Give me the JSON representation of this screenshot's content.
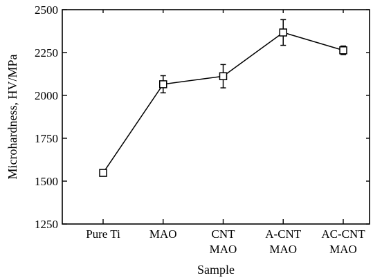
{
  "chart_data": {
    "type": "line",
    "title": "",
    "xlabel": "Sample",
    "ylabel": "Microhardness, HV/MPa",
    "categories": [
      "Pure Ti",
      "MAO",
      "CNT MAO",
      "A-CNT MAO",
      "AC-CNT MAO"
    ],
    "category_labels": [
      [
        "Pure Ti"
      ],
      [
        "MAO"
      ],
      [
        "CNT",
        "MAO"
      ],
      [
        "A-CNT",
        "MAO"
      ],
      [
        "AC-CNT",
        "MAO"
      ]
    ],
    "series": [
      {
        "values": [
          1548,
          2065,
          2112,
          2367,
          2263
        ],
        "error": [
          18,
          50,
          68,
          75,
          25
        ],
        "connected": [
          true,
          true,
          true,
          true,
          false
        ],
        "marker": "open-square",
        "color": "#000000"
      }
    ],
    "ylim": [
      1250,
      2500
    ],
    "yticks": [
      1250,
      1500,
      1750,
      2000,
      2250,
      2500
    ],
    "yticks_labels": [
      "1250",
      "1500",
      "1750",
      "2000",
      "2250",
      "2500"
    ],
    "grid": false,
    "legend": "none"
  }
}
